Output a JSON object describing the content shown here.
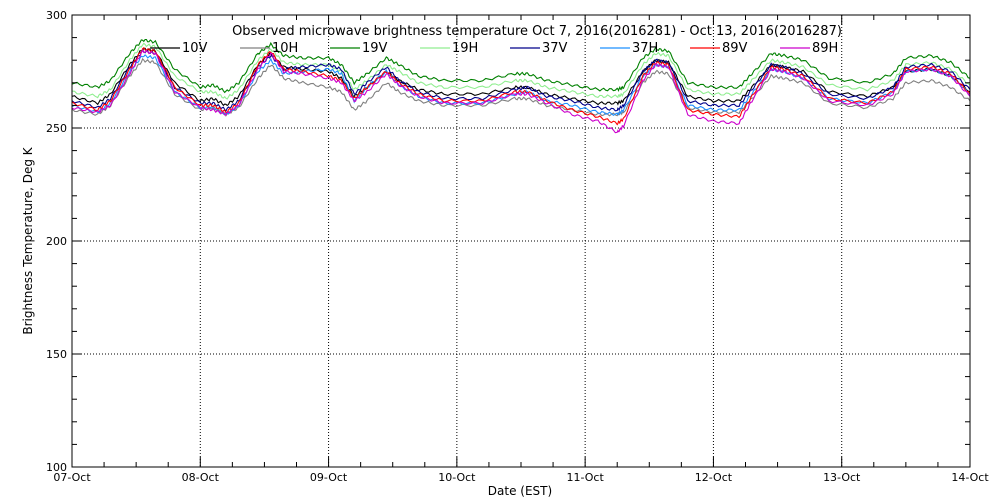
{
  "chart_data": {
    "type": "line",
    "title": "Observed microwave brightness temperature Oct  7, 2016(2016281) - Oct 13, 2016(2016287)",
    "xlabel": "Date (EST)",
    "ylabel": "Brightness Temperature, Deg K",
    "xlim": [
      0,
      7
    ],
    "ylim": [
      100,
      300
    ],
    "yticks": [
      100,
      150,
      200,
      250,
      300
    ],
    "xtick_labels": [
      "07-Oct",
      "08-Oct",
      "09-Oct",
      "10-Oct",
      "11-Oct",
      "12-Oct",
      "13-Oct",
      "14-Oct"
    ],
    "grid": true,
    "legend_position": "top",
    "x": [
      0.0,
      0.2,
      0.3,
      0.45,
      0.55,
      0.65,
      0.8,
      1.0,
      1.1,
      1.2,
      1.3,
      1.45,
      1.55,
      1.65,
      1.8,
      2.0,
      2.1,
      2.2,
      2.3,
      2.45,
      2.55,
      2.7,
      2.9,
      3.2,
      3.45,
      3.55,
      3.7,
      3.9,
      4.1,
      4.25,
      4.3,
      4.45,
      4.55,
      4.65,
      4.8,
      5.0,
      5.2,
      5.3,
      5.45,
      5.55,
      5.7,
      5.9,
      6.2,
      6.4,
      6.5,
      6.7,
      6.85,
      7.0
    ],
    "series": [
      {
        "name": "10V",
        "color": "#000000",
        "values": [
          264,
          261,
          265,
          278,
          285,
          284,
          270,
          262,
          263,
          260,
          264,
          278,
          283,
          277,
          276,
          275,
          272,
          264,
          268,
          275,
          271,
          267,
          265,
          265,
          268,
          268,
          265,
          263,
          261,
          261,
          262,
          275,
          280,
          279,
          264,
          262,
          262,
          268,
          278,
          277,
          275,
          266,
          264,
          268,
          275,
          276,
          273,
          266
        ]
      },
      {
        "name": "10H",
        "color": "#808080",
        "values": [
          258,
          256,
          260,
          273,
          280,
          279,
          265,
          258,
          259,
          256,
          259,
          272,
          278,
          272,
          270,
          268,
          266,
          258,
          262,
          270,
          266,
          262,
          260,
          260,
          263,
          263,
          260,
          258,
          256,
          256,
          257,
          270,
          275,
          274,
          259,
          257,
          257,
          263,
          273,
          272,
          270,
          261,
          259,
          263,
          270,
          271,
          268,
          262
        ]
      },
      {
        "name": "19V",
        "color": "#008000",
        "values": [
          270,
          268,
          271,
          283,
          289,
          288,
          276,
          268,
          269,
          266,
          270,
          283,
          287,
          282,
          281,
          281,
          278,
          270,
          274,
          281,
          278,
          273,
          271,
          271,
          274,
          274,
          271,
          269,
          267,
          267,
          268,
          281,
          285,
          284,
          270,
          268,
          268,
          274,
          283,
          282,
          280,
          272,
          270,
          274,
          281,
          282,
          279,
          272
        ]
      },
      {
        "name": "19H",
        "color": "#90ee90",
        "values": [
          266,
          264,
          267,
          280,
          287,
          286,
          273,
          266,
          266,
          263,
          267,
          280,
          285,
          279,
          278,
          278,
          275,
          267,
          271,
          278,
          275,
          270,
          268,
          268,
          271,
          271,
          268,
          266,
          264,
          264,
          265,
          278,
          283,
          282,
          267,
          265,
          265,
          271,
          280,
          279,
          277,
          269,
          267,
          271,
          278,
          279,
          276,
          269
        ]
      },
      {
        "name": "37V",
        "color": "#00008b",
        "values": [
          262,
          259,
          263,
          277,
          284,
          283,
          268,
          261,
          261,
          258,
          262,
          277,
          282,
          276,
          277,
          278,
          276,
          265,
          270,
          277,
          271,
          266,
          263,
          263,
          267,
          268,
          264,
          262,
          259,
          258,
          260,
          275,
          280,
          279,
          262,
          260,
          260,
          267,
          278,
          277,
          274,
          265,
          263,
          268,
          277,
          278,
          275,
          267
        ]
      },
      {
        "name": "37H",
        "color": "#1e90ff",
        "values": [
          260,
          257,
          261,
          275,
          282,
          281,
          266,
          259,
          259,
          256,
          260,
          275,
          280,
          274,
          275,
          276,
          274,
          262,
          268,
          275,
          269,
          264,
          261,
          261,
          265,
          266,
          262,
          260,
          257,
          256,
          258,
          273,
          278,
          277,
          260,
          258,
          258,
          265,
          276,
          275,
          272,
          263,
          261,
          266,
          275,
          276,
          273,
          265
        ]
      },
      {
        "name": "89V",
        "color": "#ff0000",
        "values": [
          261,
          258,
          262,
          276,
          285,
          284,
          268,
          260,
          260,
          257,
          261,
          278,
          284,
          276,
          275,
          273,
          271,
          263,
          268,
          275,
          270,
          265,
          262,
          262,
          266,
          266,
          262,
          258,
          255,
          252,
          254,
          273,
          279,
          278,
          258,
          256,
          255,
          264,
          277,
          276,
          273,
          263,
          261,
          266,
          276,
          277,
          274,
          265
        ]
      },
      {
        "name": "89H",
        "color": "#cc00cc",
        "values": [
          259,
          257,
          260,
          274,
          284,
          283,
          266,
          259,
          258,
          256,
          260,
          276,
          283,
          275,
          274,
          272,
          270,
          262,
          266,
          274,
          269,
          264,
          261,
          261,
          265,
          265,
          261,
          256,
          253,
          248,
          251,
          271,
          278,
          277,
          256,
          253,
          252,
          262,
          276,
          275,
          272,
          262,
          260,
          265,
          275,
          276,
          273,
          264
        ]
      }
    ]
  }
}
